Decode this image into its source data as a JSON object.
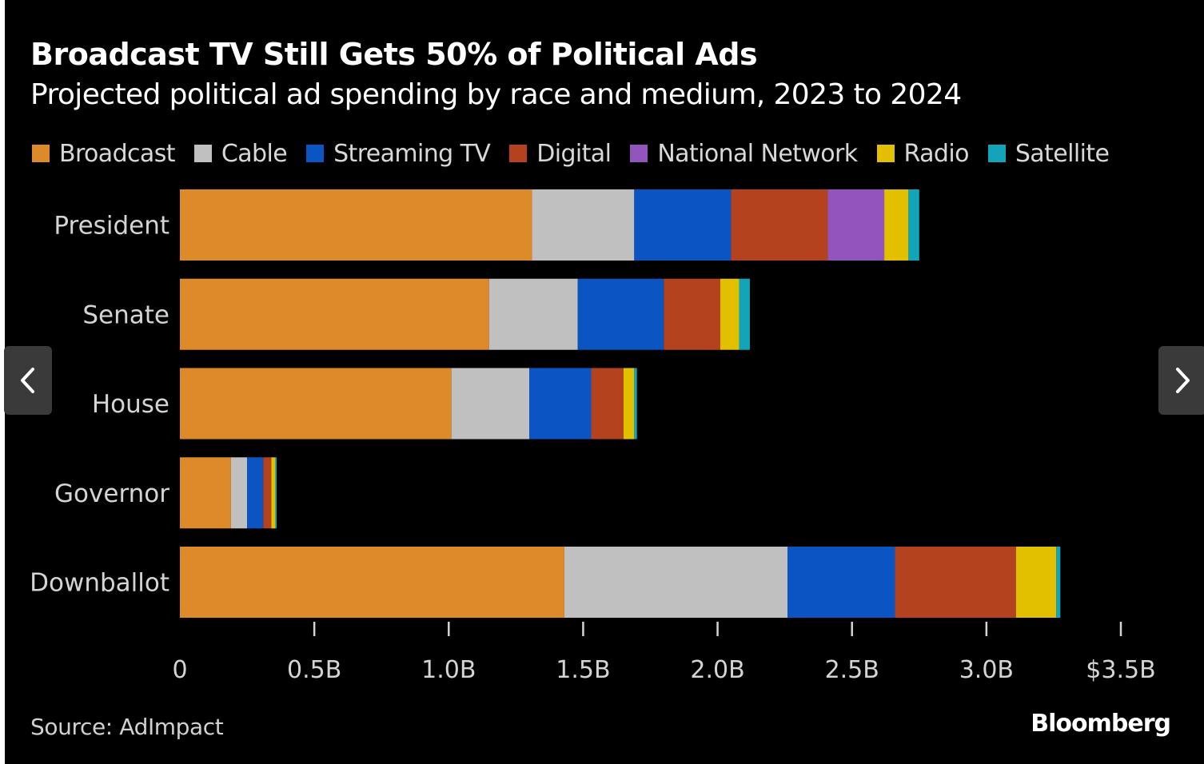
{
  "chart_data": {
    "type": "bar",
    "orientation": "horizontal",
    "stacked": true,
    "title": "Broadcast TV Still Gets 50% of Political Ads",
    "subtitle": "Projected political ad spending by race and medium, 2023 to 2024",
    "xlabel": "",
    "ylabel": "",
    "xlim": [
      0,
      3.5
    ],
    "unit": "billions USD",
    "x_ticks": [
      0,
      0.5,
      1.0,
      1.5,
      2.0,
      2.5,
      3.0,
      3.5
    ],
    "x_tick_labels": [
      "0",
      "0.5B",
      "1.0B",
      "1.5B",
      "2.0B",
      "2.5B",
      "3.0B",
      "$3.5B"
    ],
    "categories": [
      "President",
      "Senate",
      "House",
      "Governor",
      "Downballot"
    ],
    "legend_position": "top",
    "grid": false,
    "series": [
      {
        "name": "Broadcast",
        "color": "#dc8a2a",
        "values": [
          1.31,
          1.15,
          1.01,
          0.19,
          1.43
        ]
      },
      {
        "name": "Cable",
        "color": "#c0c0c0",
        "values": [
          0.38,
          0.33,
          0.29,
          0.06,
          0.83
        ]
      },
      {
        "name": "Streaming TV",
        "color": "#0b55c2",
        "values": [
          0.36,
          0.32,
          0.23,
          0.06,
          0.4
        ]
      },
      {
        "name": "Digital",
        "color": "#b5421f",
        "values": [
          0.36,
          0.21,
          0.12,
          0.03,
          0.45
        ]
      },
      {
        "name": "National Network",
        "color": "#9155bd",
        "values": [
          0.21,
          0.0,
          0.0,
          0.0,
          0.0
        ]
      },
      {
        "name": "Radio",
        "color": "#e2c000",
        "values": [
          0.09,
          0.07,
          0.04,
          0.015,
          0.15
        ]
      },
      {
        "name": "Satellite",
        "color": "#12a4b9",
        "values": [
          0.04,
          0.04,
          0.01,
          0.005,
          0.015
        ]
      }
    ]
  },
  "footer": {
    "source": "Source: AdImpact",
    "brand": "Bloomberg"
  },
  "navigation": {
    "prev_icon": "chevron-left-icon",
    "next_icon": "chevron-right-icon"
  },
  "colors": {
    "background": "#000000",
    "text": "#ffffff",
    "axis_text": "#d4d4d4",
    "nav_button": "#3a3a3a"
  }
}
